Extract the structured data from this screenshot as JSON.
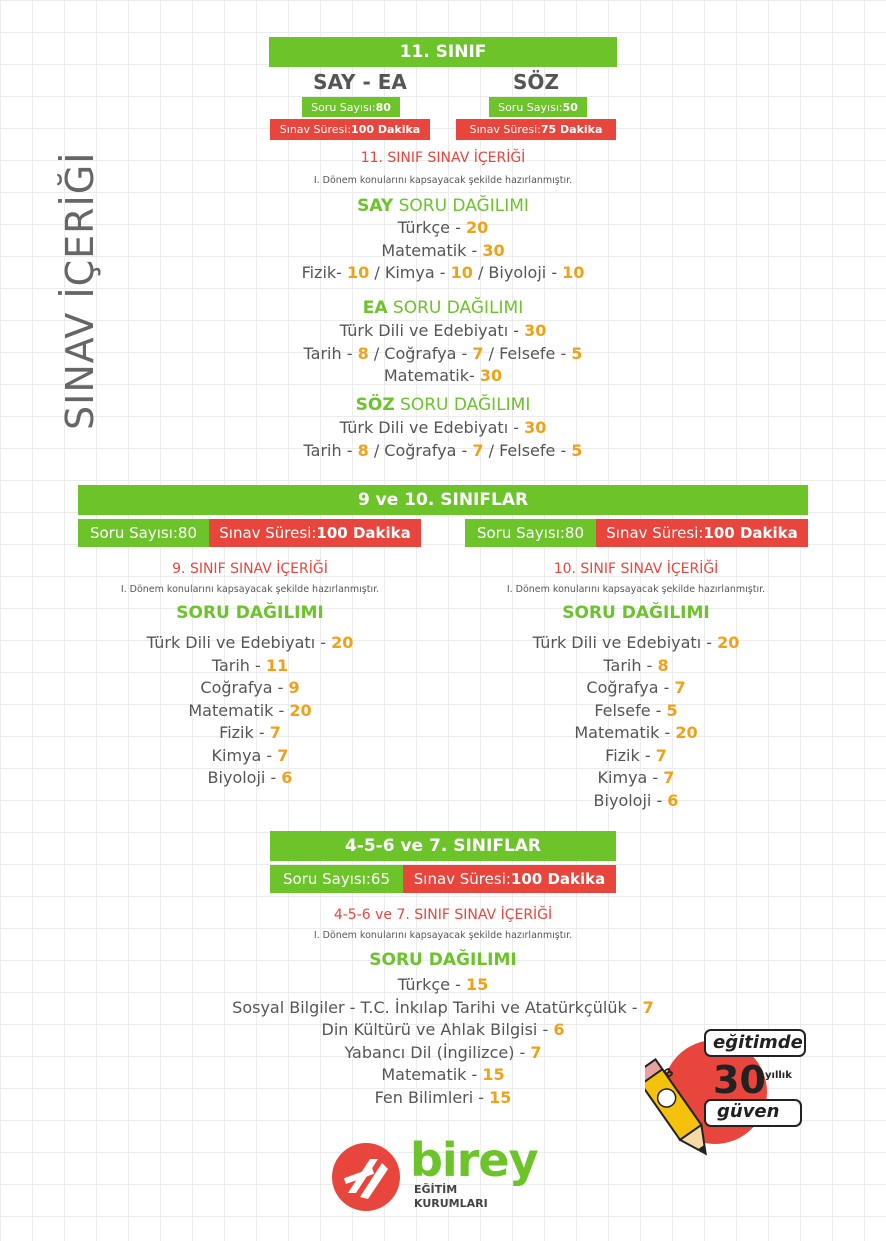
{
  "vertical_title": "SINAV İÇERİĞİ",
  "grade11": {
    "banner": "11. SINIF",
    "say_ea": {
      "heading": "SAY - EA",
      "soru_label": "Soru Sayısı:",
      "soru_value": "80",
      "sure_label": "Sınav Süresi:",
      "sure_value": "100 Dakika"
    },
    "soz": {
      "heading": "SÖZ",
      "soru_label": "Soru Sayısı:",
      "soru_value": "50",
      "sure_label": "Sınav Süresi:",
      "sure_value": "75 Dakika"
    },
    "content_title": "11. SINIF SINAV İÇERİĞİ",
    "note": "I. Dönem konularını kapsayacak şekilde hazırlanmıştır.",
    "say": {
      "head_bold": "SAY",
      "head_rest": " SORU DAĞILIMI",
      "lines": [
        [
          {
            "t": "Türkçe - "
          },
          {
            "n": "20"
          }
        ],
        [
          {
            "t": "Matematik - "
          },
          {
            "n": "30"
          }
        ],
        [
          {
            "t": "Fizik- "
          },
          {
            "n": "10"
          },
          {
            "t": " / Kimya - "
          },
          {
            "n": "10"
          },
          {
            "t": " / Biyoloji - "
          },
          {
            "n": "10"
          }
        ]
      ]
    },
    "ea": {
      "head_bold": "EA",
      "head_rest": " SORU DAĞILIMI",
      "lines": [
        [
          {
            "t": "Türk Dili ve Edebiyatı - "
          },
          {
            "n": "30"
          }
        ],
        [
          {
            "t": "Tarih - "
          },
          {
            "n": "8"
          },
          {
            "t": " / Coğrafya - "
          },
          {
            "n": "7"
          },
          {
            "t": " / Felsefe - "
          },
          {
            "n": "5"
          }
        ],
        [
          {
            "t": "Matematik- "
          },
          {
            "n": "30"
          }
        ]
      ]
    },
    "soz_dist": {
      "head_bold": "SÖZ",
      "head_rest": " SORU DAĞILIMI",
      "lines": [
        [
          {
            "t": "Türk Dili ve Edebiyatı - "
          },
          {
            "n": "30"
          }
        ],
        [
          {
            "t": "Tarih - "
          },
          {
            "n": "8"
          },
          {
            "t": " / Coğrafya - "
          },
          {
            "n": "7"
          },
          {
            "t": " / Felsefe - "
          },
          {
            "n": "5"
          }
        ]
      ]
    }
  },
  "grade9_10": {
    "banner": "9 ve 10. SINIFLAR",
    "left": {
      "soru_label": "Soru Sayısı:",
      "soru_value": "80",
      "sure_label": "Sınav Süresi:",
      "sure_value": "100 Dakika",
      "content_title": "9. SINIF SINAV İÇERİĞİ",
      "note": "I. Dönem konularını kapsayacak şekilde hazırlanmıştır.",
      "head": "SORU DAĞILIMI",
      "lines": [
        [
          {
            "t": "Türk Dili ve Edebiyatı - "
          },
          {
            "n": "20"
          }
        ],
        [
          {
            "t": "Tarih - "
          },
          {
            "n": "11"
          }
        ],
        [
          {
            "t": "Coğrafya - "
          },
          {
            "n": "9"
          }
        ],
        [
          {
            "t": "Matematik - "
          },
          {
            "n": "20"
          }
        ],
        [
          {
            "t": "Fizik - "
          },
          {
            "n": "7"
          }
        ],
        [
          {
            "t": "Kimya - "
          },
          {
            "n": "7"
          }
        ],
        [
          {
            "t": "Biyoloji - "
          },
          {
            "n": "6"
          }
        ]
      ]
    },
    "right": {
      "soru_label": "Soru Sayısı:",
      "soru_value": "80",
      "sure_label": "Sınav Süresi:",
      "sure_value": "100 Dakika",
      "content_title": "10. SINIF SINAV İÇERİĞİ",
      "note": "I. Dönem konularını kapsayacak şekilde hazırlanmıştır.",
      "head": "SORU DAĞILIMI",
      "lines": [
        [
          {
            "t": "Türk Dili ve Edebiyatı - "
          },
          {
            "n": "20"
          }
        ],
        [
          {
            "t": "Tarih - "
          },
          {
            "n": "8"
          }
        ],
        [
          {
            "t": "Coğrafya - "
          },
          {
            "n": "7"
          }
        ],
        [
          {
            "t": "Felsefe - "
          },
          {
            "n": "5"
          }
        ],
        [
          {
            "t": "Matematik - "
          },
          {
            "n": "20"
          }
        ],
        [
          {
            "t": "Fizik - "
          },
          {
            "n": "7"
          }
        ],
        [
          {
            "t": "Kimya - "
          },
          {
            "n": "7"
          }
        ],
        [
          {
            "t": "Biyoloji - "
          },
          {
            "n": "6"
          }
        ]
      ]
    }
  },
  "grade4_7": {
    "banner": "4-5-6 ve 7. SINIFLAR",
    "soru_label": "Soru Sayısı:",
    "soru_value": "65",
    "sure_label": "Sınav Süresi:",
    "sure_value": "100 Dakika",
    "content_title": "4-5-6 ve 7.  SINIF SINAV İÇERİĞİ",
    "note": "I. Dönem konularını kapsayacak şekilde hazırlanmıştır.",
    "head": "SORU DAĞILIMI",
    "lines": [
      [
        {
          "t": "Türkçe - "
        },
        {
          "n": "15"
        }
      ],
      [
        {
          "t": "Sosyal Bilgiler - T.C. İnkılap Tarihi ve Atatürkçülük - "
        },
        {
          "n": "7"
        }
      ],
      [
        {
          "t": "Din Kültürü ve Ahlak Bilgisi - "
        },
        {
          "n": "6"
        }
      ],
      [
        {
          "t": "Yabancı Dil (İngilizce) - "
        },
        {
          "n": "7"
        }
      ],
      [
        {
          "t": "Matematik - "
        },
        {
          "n": "15"
        }
      ],
      [
        {
          "t": "Fen Bilimleri - "
        },
        {
          "n": "15"
        }
      ]
    ]
  },
  "badge": {
    "line1": "eğitimde",
    "number": "30",
    "suffix": "yıllık",
    "line3": "güven",
    "pencil_letter": "B"
  },
  "logo": {
    "name": "birey",
    "sub1": "EĞİTİM",
    "sub2": "KURUMLARI"
  },
  "colors": {
    "green": "#6cc32a",
    "red": "#e8453c",
    "orange": "#f0a11a",
    "text": "#555555"
  }
}
